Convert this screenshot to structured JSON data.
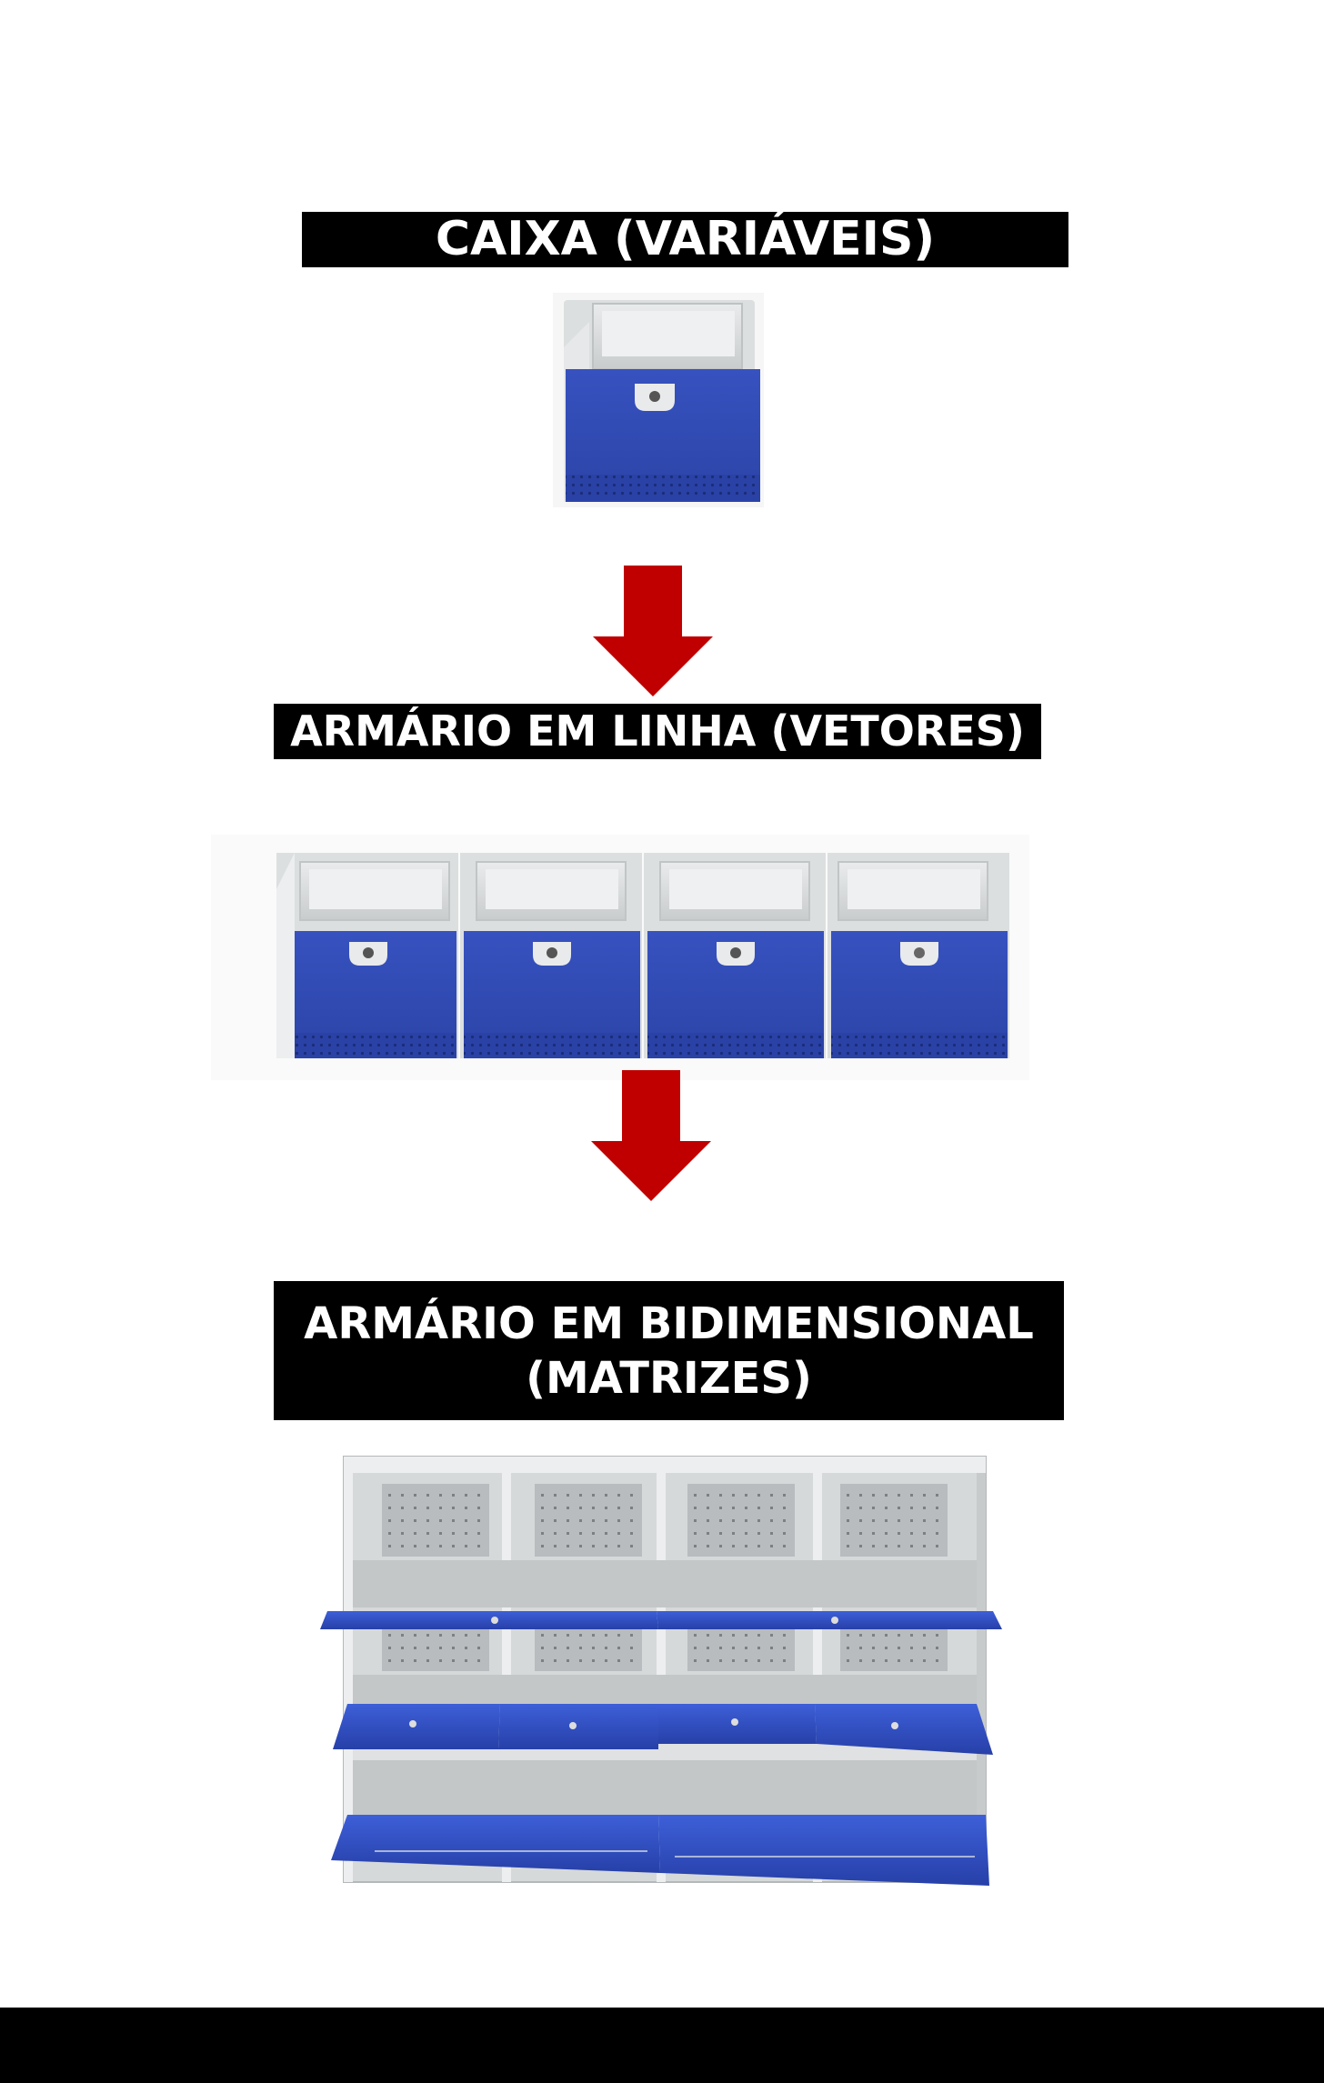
{
  "stages": [
    {
      "title": "CAIXA (VARIÁVEIS)",
      "image": "single-locker-box"
    },
    {
      "title": "ARMÁRIO EM LINHA (VETORES)",
      "image": "locker-row"
    },
    {
      "title_lines": [
        "ARMÁRIO EM BIDIMENSIONAL",
        "(MATRIZES)"
      ],
      "image": "locker-grid-open"
    }
  ],
  "arrows": [
    "arrow-down-icon",
    "arrow-down-icon"
  ],
  "colors": {
    "label_bg": "#000000",
    "label_text": "#ffffff",
    "door_blue": "#2f49b4",
    "arrow_red": "#c00000"
  }
}
